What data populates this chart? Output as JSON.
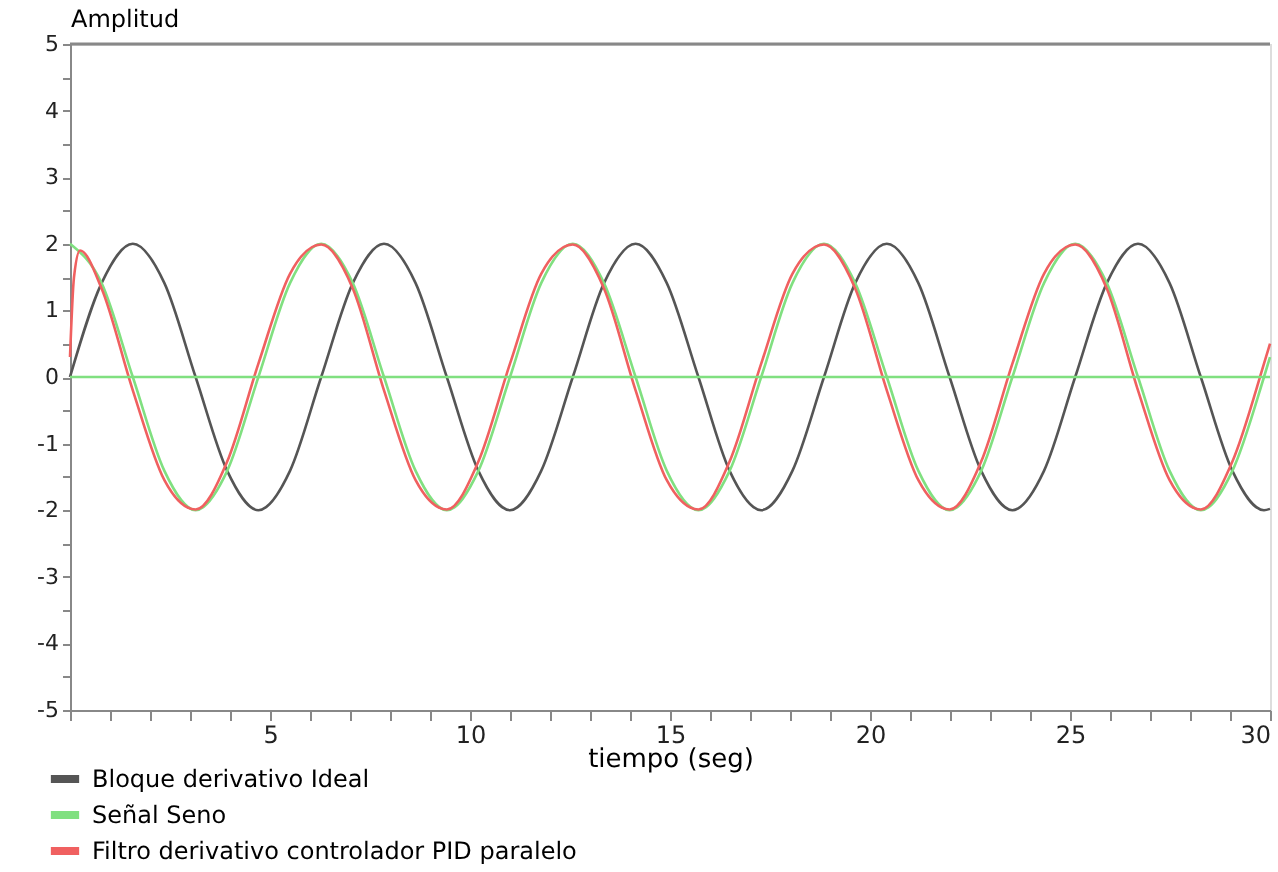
{
  "chart_data": {
    "type": "line",
    "xlabel": "tiempo (seg)",
    "ylabel": "Amplitud",
    "x": [
      0,
      0.79,
      1.57,
      2.36,
      3.14,
      3.93,
      4.71,
      5.5,
      6.28,
      7.07,
      7.85,
      8.64,
      9.42,
      10.21,
      11.0,
      11.78,
      12.57,
      13.35,
      14.14,
      14.92,
      15.71,
      16.49,
      17.28,
      18.06,
      18.85,
      19.63,
      20.42,
      21.21,
      21.99,
      22.78,
      23.56,
      24.35,
      25.13,
      25.92,
      26.7,
      27.49,
      28.27,
      29.06,
      29.85,
      30
    ],
    "series": [
      {
        "name": "Bloque derivativo Ideal",
        "color": "#555555",
        "values": [
          0,
          1.41,
          2,
          1.41,
          0,
          -1.41,
          -2,
          -1.41,
          0,
          1.41,
          2,
          1.41,
          0,
          -1.41,
          -2,
          -1.41,
          0,
          1.41,
          2,
          1.41,
          0,
          -1.41,
          -2,
          -1.41,
          0,
          1.41,
          2,
          1.41,
          0,
          -1.41,
          -2,
          -1.41,
          0,
          1.41,
          2,
          1.41,
          0,
          -1.41,
          -2,
          -1.98
        ]
      },
      {
        "name": "Señal Seno",
        "color": "#80e080",
        "values": [
          2,
          1.41,
          0,
          -1.41,
          -2,
          -1.41,
          0,
          1.41,
          2,
          1.41,
          0,
          -1.41,
          -2,
          -1.41,
          0,
          1.41,
          2,
          1.41,
          0,
          -1.41,
          -2,
          -1.41,
          0,
          1.41,
          2,
          1.41,
          0,
          -1.41,
          -2,
          -1.41,
          0,
          1.41,
          2,
          1.41,
          0,
          -1.41,
          -2,
          -1.41,
          0,
          0.3
        ]
      },
      {
        "name": "Filtro derivativo controlador PID paralelo",
        "color": "#f06060",
        "x": [
          0,
          0.1,
          0.25,
          0.79,
          1.57,
          2.36,
          3.14,
          3.93,
          4.71,
          5.5,
          6.28,
          7.07,
          7.85,
          8.64,
          9.42,
          10.21,
          11.0,
          11.78,
          12.57,
          13.35,
          14.14,
          14.92,
          15.71,
          16.49,
          17.28,
          18.06,
          18.85,
          19.63,
          20.42,
          21.21,
          21.99,
          22.78,
          23.56,
          24.35,
          25.13,
          25.92,
          26.7,
          27.49,
          28.27,
          29.06,
          29.85,
          30
        ],
        "values": [
          0.3,
          1.5,
          1.9,
          1.33,
          -0.2,
          -1.55,
          -1.99,
          -1.27,
          0.2,
          1.55,
          1.99,
          1.33,
          -0.2,
          -1.55,
          -1.99,
          -1.27,
          0.2,
          1.55,
          1.99,
          1.33,
          -0.2,
          -1.55,
          -1.99,
          -1.27,
          0.2,
          1.55,
          1.99,
          1.33,
          -0.2,
          -1.55,
          -1.99,
          -1.27,
          0.2,
          1.55,
          1.99,
          1.33,
          -0.2,
          -1.55,
          -1.99,
          -1.27,
          0.2,
          0.5
        ]
      }
    ],
    "xlim": [
      0,
      30
    ],
    "xticks": [
      {
        "value": 0,
        "label": null
      },
      {
        "value": 1,
        "label": null
      },
      {
        "value": 2,
        "label": null
      },
      {
        "value": 3,
        "label": null
      },
      {
        "value": 4,
        "label": null
      },
      5,
      {
        "value": 6,
        "label": null
      },
      {
        "value": 7,
        "label": null
      },
      {
        "value": 8,
        "label": null
      },
      {
        "value": 9,
        "label": null
      },
      10,
      {
        "value": 11,
        "label": null
      },
      {
        "value": 12,
        "label": null
      },
      {
        "value": 13,
        "label": null
      },
      {
        "value": 14,
        "label": null
      },
      15,
      {
        "value": 16,
        "label": null
      },
      {
        "value": 17,
        "label": null
      },
      {
        "value": 18,
        "label": null
      },
      {
        "value": 19,
        "label": null
      },
      20,
      {
        "value": 21,
        "label": null
      },
      {
        "value": 22,
        "label": null
      },
      {
        "value": 23,
        "label": null
      },
      {
        "value": 24,
        "label": null
      },
      25,
      {
        "value": 26,
        "label": null
      },
      {
        "value": 27,
        "label": null
      },
      {
        "value": 28,
        "label": null
      },
      {
        "value": 29,
        "label": null
      },
      30
    ],
    "ylim": [
      -5,
      5
    ],
    "yticks": [
      -5,
      {
        "value": -4.5,
        "label": null
      },
      -4,
      {
        "value": -3.5,
        "label": null
      },
      -3,
      {
        "value": -2.5,
        "label": null
      },
      -2,
      {
        "value": -1.5,
        "label": null
      },
      -1,
      {
        "value": -0.5,
        "label": null
      },
      0,
      {
        "value": 0.5,
        "label": null
      },
      1,
      {
        "value": 1.5,
        "label": null
      },
      2,
      {
        "value": 2.5,
        "label": null
      },
      3,
      {
        "value": 3.5,
        "label": null
      },
      4,
      {
        "value": 4.5,
        "label": null
      },
      5
    ],
    "ref_lines": [
      {
        "axis": "y",
        "value": 0,
        "color": "#80e080"
      }
    ],
    "grid": false,
    "legend": "bottom left",
    "line_style": "solid",
    "marker": "none"
  }
}
